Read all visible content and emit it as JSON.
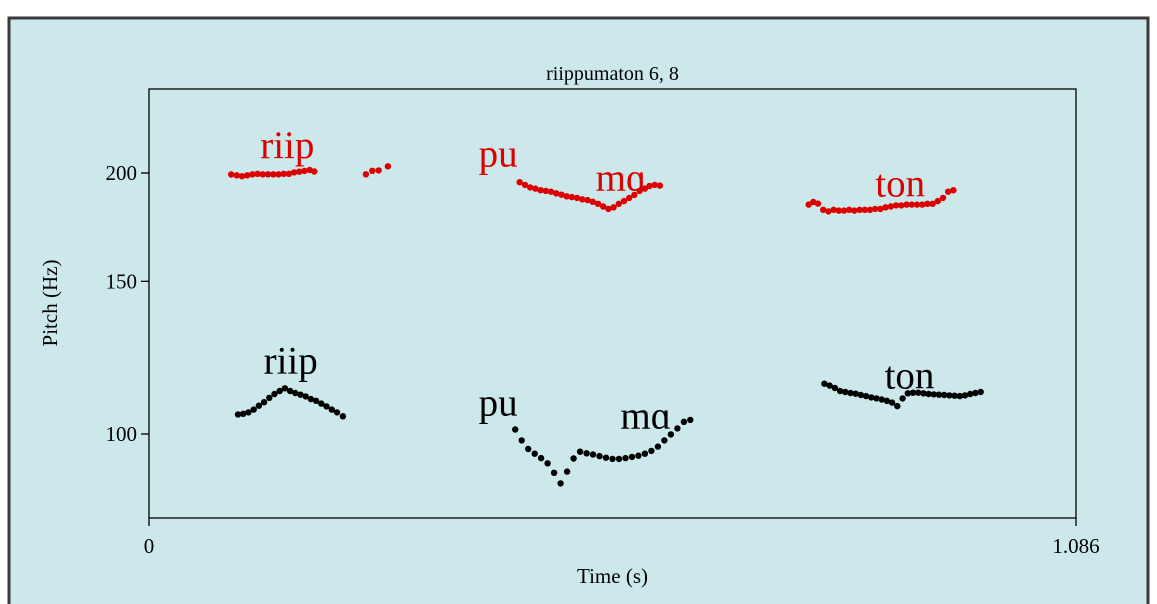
{
  "chart_data": {
    "type": "scatter",
    "title": "riippumaton 6, 8",
    "xlabel": "Time (s)",
    "ylabel": "Pitch (Hz)",
    "xlim": [
      0,
      1.086
    ],
    "ylim": [
      80,
      250
    ],
    "y_scale": "log",
    "x_ticks": [
      {
        "value": 0,
        "label": "0"
      },
      {
        "value": 1.086,
        "label": "1.086"
      }
    ],
    "y_ticks": [
      {
        "value": 100,
        "label": "100"
      },
      {
        "value": 150,
        "label": "150"
      },
      {
        "value": 200,
        "label": "200"
      }
    ],
    "grid": false,
    "colors": {
      "background": "#cce8ea",
      "plot_area": "#cce8ea",
      "red": "#dd0000",
      "black": "#000000"
    },
    "series": [
      {
        "color": "#dd0000",
        "points": [
          [
            0.0963,
            199.2
          ],
          [
            0.1028,
            198.8
          ],
          [
            0.1089,
            198.3
          ],
          [
            0.115,
            198.8
          ],
          [
            0.1211,
            199.3
          ],
          [
            0.1272,
            199.6
          ],
          [
            0.1333,
            199.3
          ],
          [
            0.1395,
            199.3
          ],
          [
            0.1456,
            199.3
          ],
          [
            0.1517,
            199.3
          ],
          [
            0.1578,
            199.6
          ],
          [
            0.1639,
            199.6
          ],
          [
            0.17,
            200.3
          ],
          [
            0.1761,
            200.7
          ],
          [
            0.1822,
            201.1
          ],
          [
            0.1883,
            201.6
          ],
          [
            0.1936,
            200.8
          ],
          [
            0.2541,
            199.3
          ],
          [
            0.2616,
            201.2
          ],
          [
            0.2691,
            201.4
          ],
          [
            0.2799,
            203.6
          ],
          [
            0.4343,
            195.2
          ],
          [
            0.4405,
            193.8
          ],
          [
            0.4466,
            192.5
          ],
          [
            0.4527,
            191.9
          ],
          [
            0.4588,
            191.1
          ],
          [
            0.4649,
            190.7
          ],
          [
            0.471,
            190.3
          ],
          [
            0.4771,
            189.5
          ],
          [
            0.4832,
            188.8
          ],
          [
            0.4893,
            188.0
          ],
          [
            0.4954,
            187.6
          ],
          [
            0.5015,
            187.2
          ],
          [
            0.5076,
            186.5
          ],
          [
            0.5138,
            186.1
          ],
          [
            0.5199,
            185.3
          ],
          [
            0.526,
            184.3
          ],
          [
            0.5321,
            183.0
          ],
          [
            0.5382,
            181.8
          ],
          [
            0.5443,
            182.6
          ],
          [
            0.5504,
            184.3
          ],
          [
            0.5565,
            185.6
          ],
          [
            0.5626,
            187.2
          ],
          [
            0.5687,
            188.7
          ],
          [
            0.5748,
            190.7
          ],
          [
            0.5809,
            191.9
          ],
          [
            0.5863,
            193.2
          ],
          [
            0.5924,
            193.8
          ],
          [
            0.5985,
            193.4
          ],
          [
            0.7729,
            183.9
          ],
          [
            0.7783,
            185.2
          ],
          [
            0.7837,
            184.4
          ],
          [
            0.7898,
            181.4
          ],
          [
            0.7959,
            180.6
          ],
          [
            0.802,
            181.4
          ],
          [
            0.8081,
            181.0
          ],
          [
            0.8142,
            181.0
          ],
          [
            0.8203,
            181.4
          ],
          [
            0.8264,
            181.0
          ],
          [
            0.8325,
            181.4
          ],
          [
            0.8386,
            181.4
          ],
          [
            0.8447,
            181.4
          ],
          [
            0.8508,
            181.8
          ],
          [
            0.8569,
            181.8
          ],
          [
            0.863,
            182.6
          ],
          [
            0.8691,
            183.0
          ],
          [
            0.8752,
            183.5
          ],
          [
            0.8813,
            183.5
          ],
          [
            0.8875,
            183.9
          ],
          [
            0.8936,
            183.9
          ],
          [
            0.8997,
            183.9
          ],
          [
            0.9058,
            183.9
          ],
          [
            0.9119,
            184.3
          ],
          [
            0.918,
            184.3
          ],
          [
            0.9241,
            185.6
          ],
          [
            0.9302,
            187.2
          ],
          [
            0.9363,
            190.3
          ],
          [
            0.9424,
            191.1
          ]
        ]
      },
      {
        "color": "#000000",
        "points": [
          [
            0.1043,
            105.3
          ],
          [
            0.1104,
            105.5
          ],
          [
            0.1165,
            105.9
          ],
          [
            0.1226,
            106.7
          ],
          [
            0.1287,
            107.8
          ],
          [
            0.1348,
            108.8
          ],
          [
            0.1409,
            110.1
          ],
          [
            0.147,
            111.2
          ],
          [
            0.1531,
            112.1
          ],
          [
            0.1592,
            112.9
          ],
          [
            0.1653,
            112.1
          ],
          [
            0.1714,
            111.5
          ],
          [
            0.1775,
            111.0
          ],
          [
            0.1836,
            110.5
          ],
          [
            0.1897,
            109.7
          ],
          [
            0.1958,
            109.2
          ],
          [
            0.2019,
            108.4
          ],
          [
            0.208,
            107.6
          ],
          [
            0.2141,
            106.7
          ],
          [
            0.2202,
            105.9
          ],
          [
            0.2271,
            104.8
          ],
          [
            0.429,
            101.2
          ],
          [
            0.4366,
            98.3
          ],
          [
            0.4442,
            96.1
          ],
          [
            0.4518,
            94.9
          ],
          [
            0.4594,
            93.8
          ],
          [
            0.467,
            92.5
          ],
          [
            0.4746,
            90.2
          ],
          [
            0.4822,
            87.7
          ],
          [
            0.4898,
            90.5
          ],
          [
            0.4974,
            93.7
          ],
          [
            0.505,
            95.4
          ],
          [
            0.5126,
            95.0
          ],
          [
            0.5202,
            94.7
          ],
          [
            0.5278,
            94.3
          ],
          [
            0.5354,
            93.9
          ],
          [
            0.543,
            93.6
          ],
          [
            0.5506,
            93.6
          ],
          [
            0.5582,
            93.8
          ],
          [
            0.5658,
            94.1
          ],
          [
            0.5734,
            94.4
          ],
          [
            0.581,
            94.9
          ],
          [
            0.5886,
            95.6
          ],
          [
            0.5962,
            96.7
          ],
          [
            0.6038,
            98.3
          ],
          [
            0.6114,
            99.9
          ],
          [
            0.619,
            101.5
          ],
          [
            0.6266,
            103.3
          ],
          [
            0.6342,
            103.8
          ],
          [
            0.7913,
            114.3
          ],
          [
            0.7974,
            113.7
          ],
          [
            0.8035,
            113.0
          ],
          [
            0.8096,
            112.1
          ],
          [
            0.8157,
            111.8
          ],
          [
            0.8218,
            111.5
          ],
          [
            0.8279,
            111.3
          ],
          [
            0.834,
            110.9
          ],
          [
            0.8401,
            110.6
          ],
          [
            0.8462,
            110.2
          ],
          [
            0.8523,
            109.9
          ],
          [
            0.8584,
            109.6
          ],
          [
            0.8645,
            109.2
          ],
          [
            0.8706,
            108.7
          ],
          [
            0.8767,
            107.7
          ],
          [
            0.8828,
            109.9
          ],
          [
            0.8889,
            111.4
          ],
          [
            0.895,
            111.6
          ],
          [
            0.9011,
            111.6
          ],
          [
            0.9072,
            111.4
          ],
          [
            0.9133,
            111.2
          ],
          [
            0.9194,
            111.1
          ],
          [
            0.9255,
            111.0
          ],
          [
            0.9316,
            110.9
          ],
          [
            0.9377,
            110.8
          ],
          [
            0.9438,
            110.7
          ],
          [
            0.9499,
            110.6
          ],
          [
            0.956,
            110.8
          ],
          [
            0.9621,
            111.2
          ],
          [
            0.9682,
            111.5
          ],
          [
            0.9743,
            111.8
          ]
        ]
      }
    ],
    "annotations": [
      {
        "text": "riip",
        "color": "#dd0000",
        "x": 0.162,
        "y": 208
      },
      {
        "text": "pu",
        "color": "#dd0000",
        "x": 0.409,
        "y": 203.5
      },
      {
        "text": "mɑ",
        "color": "#dd0000",
        "x": 0.553,
        "y": 191
      },
      {
        "text": "ton",
        "color": "#dd0000",
        "x": 0.88,
        "y": 188
      },
      {
        "text": "riip",
        "color": "#000000",
        "x": 0.166,
        "y": 117.5
      },
      {
        "text": "pu",
        "color": "#000000",
        "x": 0.409,
        "y": 105
      },
      {
        "text": "mɑ",
        "color": "#000000",
        "x": 0.582,
        "y": 101.5
      },
      {
        "text": "ton",
        "color": "#000000",
        "x": 0.891,
        "y": 112.8
      }
    ]
  }
}
